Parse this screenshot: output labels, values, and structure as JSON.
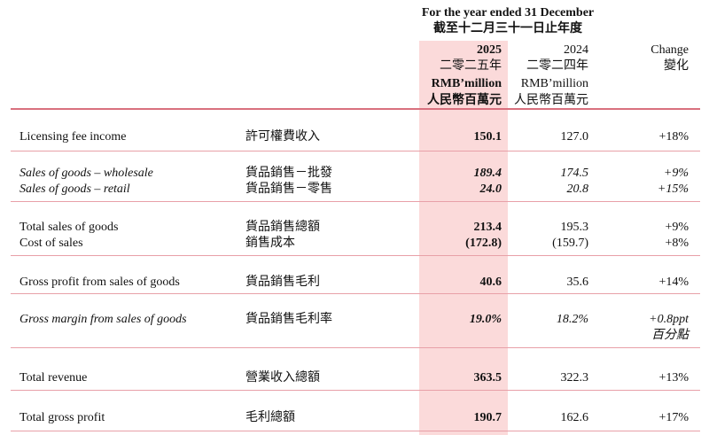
{
  "header": {
    "period_en": "For the year ended 31 December",
    "period_zh": "截至十二月三十一日止年度",
    "columns": [
      {
        "year": "2025",
        "year_zh": "二零二五年",
        "unit": "RMB’million",
        "unit_zh": "人民幣百萬元"
      },
      {
        "year": "2024",
        "year_zh": "二零二四年",
        "unit": "RMB’million",
        "unit_zh": "人民幣百萬元"
      },
      {
        "label": "Change",
        "label_zh": "變化"
      }
    ]
  },
  "table": {
    "rows": [
      [
        "Licensing fee income",
        "許可權費收入",
        "150.1",
        "127.0",
        "+18%"
      ],
      [
        "Sales of goods – wholesale",
        "貨品銷售－批發",
        "189.4",
        "174.5",
        "+9%"
      ],
      [
        "Sales of goods – retail",
        "貨品銷售－零售",
        "24.0",
        "20.8",
        "+15%"
      ],
      [
        "Total sales of goods",
        "貨品銷售總額",
        "213.4",
        "195.3",
        "+9%"
      ],
      [
        "Cost of sales",
        "銷售成本",
        "(172.8)",
        "(159.7)",
        "+8%"
      ],
      [
        "Gross profit from sales of goods",
        "貨品銷售毛利",
        "40.6",
        "35.6",
        "+14%"
      ],
      [
        "Gross margin from sales of goods",
        "貨品銷售毛利率",
        "19.0%",
        "18.2%",
        "+0.8ppt",
        "百分點"
      ],
      [
        "Total revenue",
        "營業收入總額",
        "363.5",
        "322.3",
        "+13%"
      ],
      [
        "Total gross profit",
        "毛利總額",
        "190.7",
        "162.6",
        "+17%"
      ]
    ]
  }
}
